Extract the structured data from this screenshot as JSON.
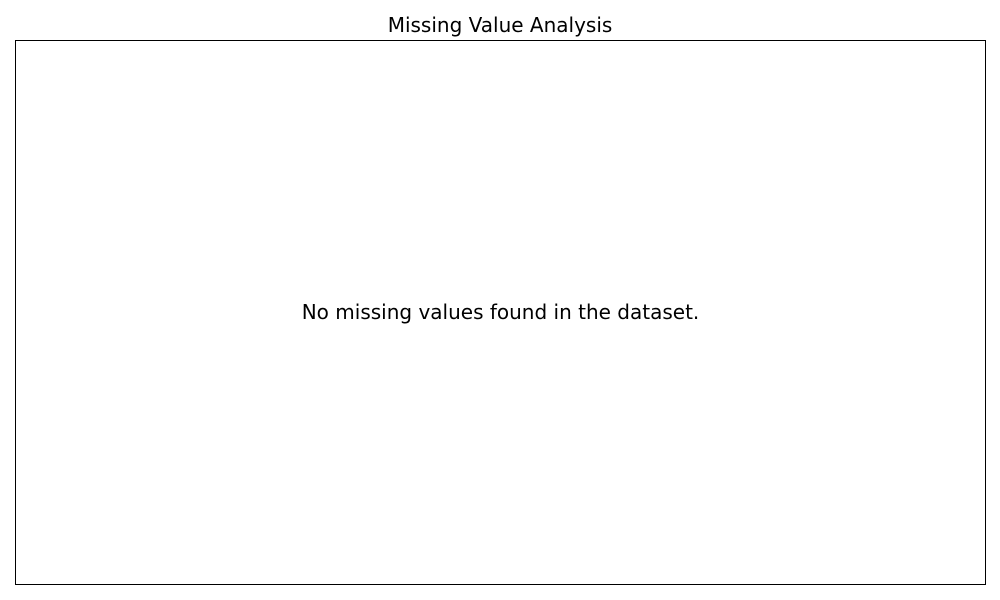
{
  "chart_data": {
    "type": "bar",
    "title": "Missing Value Analysis",
    "xlabel": "",
    "ylabel": "",
    "categories": [],
    "values": [],
    "grid": false,
    "annotations": [
      "No missing values found in the dataset."
    ]
  },
  "colors": {
    "frame": "#000000",
    "background": "#ffffff",
    "text": "#000000"
  }
}
